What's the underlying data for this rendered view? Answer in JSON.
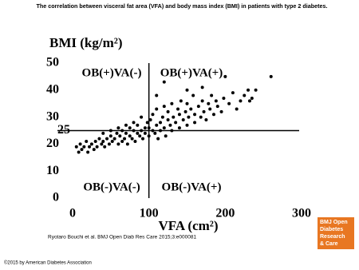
{
  "chart_data": {
    "type": "scatter",
    "title": "The correlation between visceral fat area (VFA) and body mass index (BMI) in patients with type 2 diabetes.",
    "x_label": "VFA (cm²)",
    "y_label": "BMI (kg/m²)",
    "xlim": [
      0,
      300
    ],
    "xticks": [
      0,
      100,
      200,
      300
    ],
    "ylim": [
      0,
      50
    ],
    "yticks": [
      0,
      10,
      20,
      30,
      40,
      50
    ],
    "reference_x": 100,
    "reference_y": 25,
    "annotations": [
      "OB(+)VA(-)",
      "OB(+)VA(+)",
      "OB(-)VA(-)",
      "OB(-)VA(+)"
    ],
    "color": "#000000",
    "x": [
      5,
      8,
      10,
      12,
      15,
      18,
      20,
      22,
      25,
      28,
      30,
      32,
      35,
      38,
      40,
      40,
      42,
      45,
      48,
      50,
      50,
      52,
      55,
      58,
      60,
      60,
      62,
      65,
      65,
      68,
      70,
      70,
      72,
      75,
      75,
      78,
      80,
      80,
      82,
      85,
      85,
      88,
      90,
      90,
      92,
      95,
      95,
      98,
      100,
      100,
      102,
      105,
      105,
      108,
      110,
      110,
      112,
      115,
      115,
      118,
      120,
      120,
      122,
      125,
      125,
      128,
      130,
      130,
      132,
      135,
      138,
      140,
      140,
      142,
      145,
      148,
      150,
      150,
      152,
      155,
      158,
      160,
      160,
      165,
      168,
      170,
      172,
      175,
      178,
      180,
      182,
      185,
      188,
      190,
      195,
      198,
      200,
      205,
      210,
      215,
      220,
      225,
      230,
      235,
      240,
      232,
      260,
      120,
      110,
      170,
      150
    ],
    "y": [
      19,
      17,
      20,
      18,
      19,
      21,
      17,
      19,
      20,
      18,
      21,
      19,
      22,
      20,
      21,
      24,
      19,
      22,
      20,
      23,
      25,
      21,
      22,
      24,
      20,
      26,
      23,
      21,
      25,
      22,
      24,
      27,
      20,
      23,
      26,
      22,
      25,
      28,
      21,
      24,
      27,
      23,
      25,
      30,
      22,
      26,
      24,
      28,
      23,
      26,
      29,
      25,
      31,
      24,
      27,
      33,
      22,
      28,
      25,
      30,
      26,
      34,
      23,
      29,
      32,
      27,
      25,
      35,
      30,
      28,
      33,
      26,
      31,
      36,
      29,
      32,
      27,
      35,
      30,
      33,
      38,
      28,
      31,
      34,
      30,
      36,
      32,
      29,
      35,
      33,
      38,
      31,
      36,
      34,
      32,
      37,
      45,
      35,
      39,
      33,
      36,
      38,
      40,
      37,
      40,
      36,
      45,
      43,
      38,
      41,
      40
    ]
  },
  "footer": {
    "citation": "Ryotaro Bouchi et al. BMJ Open Diab Res Care 2015;3:e000081",
    "copyright": "©2015 by American Diabetes Association",
    "logo": [
      "BMJ Open",
      "Diabetes",
      "Research",
      "& Care"
    ]
  }
}
